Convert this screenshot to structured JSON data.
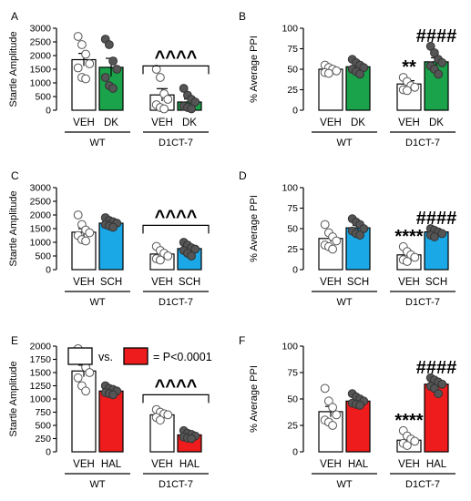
{
  "legend": {
    "vs": "vs.",
    "eq": "= P<0.0001"
  },
  "chart_data": [
    {
      "panel": "A",
      "type": "bar",
      "ylabel": "Startle Amplitude",
      "ylim": [
        0,
        3000
      ],
      "yticks": [
        0,
        500,
        1000,
        1500,
        2000,
        2500,
        3000
      ],
      "groups": [
        "WT",
        "D1CT-7"
      ],
      "categories": [
        "VEH",
        "DK",
        "VEH",
        "DK"
      ],
      "values": [
        1850,
        1570,
        560,
        300
      ],
      "errors": [
        230,
        330,
        230,
        110
      ],
      "colors": [
        "#ffffff",
        "#1aa34a",
        "#ffffff",
        "#1aa34a"
      ],
      "points": [
        [
          2700,
          2400,
          2050,
          1700,
          1550,
          1200,
          1150
        ],
        [
          2600,
          2400,
          1800,
          1500,
          1200,
          900,
          800
        ],
        [
          1500,
          1200,
          600,
          400,
          200,
          100,
          50
        ],
        [
          800,
          550,
          400,
          300,
          150,
          100,
          50
        ]
      ],
      "annotations": [
        {
          "text": "^^^^",
          "type": "bracket",
          "from": 2,
          "to": 3
        }
      ]
    },
    {
      "panel": "B",
      "type": "bar",
      "ylabel": "% Average PPI",
      "ylim": [
        0,
        100
      ],
      "yticks": [
        0,
        25,
        50,
        75,
        100
      ],
      "groups": [
        "WT",
        "D1CT-7"
      ],
      "categories": [
        "VEH",
        "DK",
        "VEH",
        "DK"
      ],
      "values": [
        50,
        53,
        32,
        59
      ],
      "errors": [
        3,
        3,
        4,
        5
      ],
      "colors": [
        "#ffffff",
        "#1aa34a",
        "#ffffff",
        "#1aa34a"
      ],
      "points": [
        [
          55,
          52,
          50,
          48,
          46,
          45
        ],
        [
          62,
          58,
          55,
          52,
          50,
          47,
          44
        ],
        [
          40,
          35,
          30,
          28,
          25,
          24
        ],
        [
          78,
          70,
          62,
          58,
          54,
          50,
          44
        ]
      ],
      "annotations": [
        {
          "text": "**",
          "bar": 2
        },
        {
          "text": "####",
          "bar": 3
        }
      ]
    },
    {
      "panel": "C",
      "type": "bar",
      "ylabel": "Startle Amplitude",
      "ylim": [
        0,
        3000
      ],
      "yticks": [
        0,
        500,
        1000,
        1500,
        2000,
        2500,
        3000
      ],
      "groups": [
        "WT",
        "D1CT-7"
      ],
      "categories": [
        "VEH",
        "SCH",
        "VEH",
        "SCH"
      ],
      "values": [
        1370,
        1700,
        570,
        770
      ],
      "errors": [
        130,
        80,
        70,
        80
      ],
      "colors": [
        "#ffffff",
        "#1ba8e6",
        "#ffffff",
        "#1ba8e6"
      ],
      "points": [
        [
          2000,
          1650,
          1450,
          1350,
          1250,
          1100,
          1050
        ],
        [
          1900,
          1800,
          1750,
          1700,
          1650,
          1600,
          1550
        ],
        [
          850,
          700,
          600,
          500,
          400,
          350
        ],
        [
          1000,
          900,
          800,
          750,
          700,
          600,
          500
        ]
      ],
      "annotations": [
        {
          "text": "^^^^",
          "type": "bracket",
          "from": 2,
          "to": 3
        }
      ]
    },
    {
      "panel": "D",
      "type": "bar",
      "ylabel": "% Average PPI",
      "ylim": [
        0,
        100
      ],
      "yticks": [
        0,
        25,
        50,
        75,
        100
      ],
      "groups": [
        "WT",
        "D1CT-7"
      ],
      "categories": [
        "VEH",
        "SCH",
        "VEH",
        "SCH"
      ],
      "values": [
        38,
        51,
        18,
        46
      ],
      "errors": [
        4,
        3,
        3,
        2
      ],
      "colors": [
        "#ffffff",
        "#1ba8e6",
        "#ffffff",
        "#1ba8e6"
      ],
      "points": [
        [
          55,
          45,
          40,
          35,
          30,
          28,
          25
        ],
        [
          62,
          58,
          55,
          50,
          47,
          44,
          42
        ],
        [
          28,
          22,
          18,
          15,
          12,
          10
        ],
        [
          50,
          48,
          46,
          44,
          42,
          40
        ]
      ],
      "annotations": [
        {
          "text": "****",
          "bar": 2
        },
        {
          "text": "####",
          "bar": 3
        }
      ]
    },
    {
      "panel": "E",
      "type": "bar",
      "ylabel": "Startle Amplitude",
      "ylim": [
        0,
        2000
      ],
      "yticks": [
        0,
        250,
        500,
        750,
        1000,
        1250,
        1500,
        1750,
        2000
      ],
      "groups": [
        "WT",
        "D1CT-7"
      ],
      "categories": [
        "VEH",
        "HAL",
        "VEH",
        "HAL"
      ],
      "values": [
        1530,
        1150,
        700,
        320
      ],
      "errors": [
        110,
        40,
        50,
        40
      ],
      "colors": [
        "#ffffff",
        "#ee1c1c",
        "#ffffff",
        "#ee1c1c"
      ],
      "points": [
        [
          1950,
          1750,
          1600,
          1500,
          1400,
          1250,
          1150
        ],
        [
          1250,
          1200,
          1180,
          1150,
          1120,
          1100,
          1080
        ],
        [
          800,
          750,
          720,
          700,
          650,
          600
        ],
        [
          400,
          350,
          330,
          300,
          280,
          260,
          250
        ]
      ],
      "annotations": [
        {
          "text": "^^^^",
          "type": "bracket",
          "from": 2,
          "to": 3
        }
      ]
    },
    {
      "panel": "F",
      "type": "bar",
      "ylabel": "% Average PPI",
      "ylim": [
        0,
        100
      ],
      "yticks": [
        0,
        25,
        50,
        75,
        100
      ],
      "groups": [
        "WT",
        "D1CT-7"
      ],
      "categories": [
        "VEH",
        "HAL",
        "VEH",
        "HAL"
      ],
      "values": [
        38,
        48,
        11,
        64
      ],
      "errors": [
        5,
        3,
        3,
        3
      ],
      "colors": [
        "#ffffff",
        "#ee1c1c",
        "#ffffff",
        "#ee1c1c"
      ],
      "points": [
        [
          60,
          48,
          42,
          35,
          30,
          28,
          25
        ],
        [
          55,
          52,
          50,
          48,
          46,
          45,
          44
        ],
        [
          20,
          15,
          12,
          10,
          8,
          6
        ],
        [
          70,
          68,
          66,
          64,
          62,
          60,
          55
        ]
      ],
      "annotations": [
        {
          "text": "****",
          "bar": 2
        },
        {
          "text": "####",
          "bar": 3
        }
      ]
    }
  ]
}
